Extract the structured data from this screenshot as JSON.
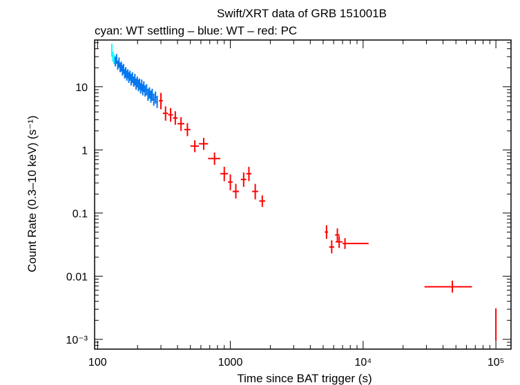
{
  "chart_data": {
    "type": "scatter",
    "title": "Swift/XRT data of GRB 151001B",
    "subtitle": "cyan: WT settling – blue: WT – red: PC",
    "xlabel": "Time since BAT trigger (s)",
    "ylabel": "Count Rate (0.3–10 keV) (s⁻¹)",
    "xscale": "log",
    "yscale": "log",
    "xlim": [
      95,
      130000
    ],
    "ylim": [
      0.0007,
      55
    ],
    "x_ticks": [
      {
        "value": 100,
        "label": "100"
      },
      {
        "value": 1000,
        "label": "1000"
      },
      {
        "value": 10000,
        "label": "10⁴"
      },
      {
        "value": 100000,
        "label": "10⁵"
      }
    ],
    "y_ticks": [
      {
        "value": 10,
        "label": "10"
      },
      {
        "value": 1,
        "label": "1"
      },
      {
        "value": 0.1,
        "label": "0.1"
      },
      {
        "value": 0.01,
        "label": "0.01"
      },
      {
        "value": 0.001,
        "label": "10⁻³"
      }
    ],
    "colors": {
      "wt_settling": "#00ffff",
      "wt": "#0077ee",
      "pc": "#ff0000"
    },
    "series": [
      {
        "name": "WT settling",
        "color": "#00ffff",
        "points": [
          {
            "x": 128,
            "xlo": 127,
            "xhi": 129,
            "y": 38,
            "ylo": 30,
            "yhi": 48
          },
          {
            "x": 130.5,
            "xlo": 129.5,
            "xhi": 131.5,
            "y": 30,
            "ylo": 25,
            "yhi": 36
          },
          {
            "x": 133,
            "xlo": 132,
            "xhi": 134,
            "y": 27,
            "ylo": 23,
            "yhi": 32
          }
        ]
      },
      {
        "name": "WT",
        "color": "#0077ee",
        "points": [
          {
            "x": 136,
            "xlo": 134.5,
            "xhi": 137.5,
            "y": 25,
            "ylo": 21,
            "yhi": 30
          },
          {
            "x": 139,
            "xlo": 137.5,
            "xhi": 140.5,
            "y": 28,
            "ylo": 23,
            "yhi": 33
          },
          {
            "x": 142,
            "xlo": 140.5,
            "xhi": 143.5,
            "y": 22,
            "ylo": 18.5,
            "yhi": 26
          },
          {
            "x": 145,
            "xlo": 143.5,
            "xhi": 146.5,
            "y": 24,
            "ylo": 20,
            "yhi": 29
          },
          {
            "x": 148,
            "xlo": 146.5,
            "xhi": 149.5,
            "y": 20,
            "ylo": 17,
            "yhi": 24
          },
          {
            "x": 151,
            "xlo": 149.5,
            "xhi": 152.5,
            "y": 21,
            "ylo": 17.5,
            "yhi": 25
          },
          {
            "x": 154,
            "xlo": 152.5,
            "xhi": 155.5,
            "y": 18,
            "ylo": 15,
            "yhi": 22
          },
          {
            "x": 157,
            "xlo": 155.5,
            "xhi": 158.5,
            "y": 19,
            "ylo": 16,
            "yhi": 23
          },
          {
            "x": 160,
            "xlo": 158.5,
            "xhi": 161.5,
            "y": 16,
            "ylo": 13.5,
            "yhi": 19
          },
          {
            "x": 163,
            "xlo": 161.5,
            "xhi": 164.5,
            "y": 17,
            "ylo": 14,
            "yhi": 20.5
          },
          {
            "x": 166,
            "xlo": 164.5,
            "xhi": 167.5,
            "y": 15,
            "ylo": 12.5,
            "yhi": 18
          },
          {
            "x": 169,
            "xlo": 167.5,
            "xhi": 170.5,
            "y": 16,
            "ylo": 13.5,
            "yhi": 19
          },
          {
            "x": 172,
            "xlo": 170.5,
            "xhi": 173.5,
            "y": 14,
            "ylo": 11.5,
            "yhi": 17
          },
          {
            "x": 175.5,
            "xlo": 174,
            "xhi": 177,
            "y": 15,
            "ylo": 12.5,
            "yhi": 18
          },
          {
            "x": 179,
            "xlo": 177,
            "xhi": 181,
            "y": 13,
            "ylo": 10.5,
            "yhi": 16
          },
          {
            "x": 183,
            "xlo": 181,
            "xhi": 185,
            "y": 14,
            "ylo": 11.5,
            "yhi": 17
          },
          {
            "x": 187,
            "xlo": 185,
            "xhi": 189,
            "y": 12,
            "ylo": 10,
            "yhi": 14.5
          },
          {
            "x": 191,
            "xlo": 189,
            "xhi": 193,
            "y": 13,
            "ylo": 10.5,
            "yhi": 16
          },
          {
            "x": 195,
            "xlo": 193,
            "xhi": 197,
            "y": 11,
            "ylo": 9,
            "yhi": 13.5
          },
          {
            "x": 199,
            "xlo": 197,
            "xhi": 201,
            "y": 12,
            "ylo": 9.8,
            "yhi": 14.5
          },
          {
            "x": 203,
            "xlo": 201,
            "xhi": 205,
            "y": 10.5,
            "ylo": 8.5,
            "yhi": 13
          },
          {
            "x": 207,
            "xlo": 205,
            "xhi": 209,
            "y": 11,
            "ylo": 9,
            "yhi": 13.5
          },
          {
            "x": 211,
            "xlo": 209,
            "xhi": 213,
            "y": 9.5,
            "ylo": 7.8,
            "yhi": 11.5
          },
          {
            "x": 215,
            "xlo": 213,
            "xhi": 217,
            "y": 10.5,
            "ylo": 8.5,
            "yhi": 13
          },
          {
            "x": 219,
            "xlo": 217,
            "xhi": 221,
            "y": 9,
            "ylo": 7.3,
            "yhi": 11
          },
          {
            "x": 223,
            "xlo": 221,
            "xhi": 225,
            "y": 10,
            "ylo": 8.2,
            "yhi": 12.2
          },
          {
            "x": 228,
            "xlo": 225,
            "xhi": 231,
            "y": 8.5,
            "ylo": 7,
            "yhi": 10.5
          },
          {
            "x": 234,
            "xlo": 231,
            "xhi": 237,
            "y": 9,
            "ylo": 7.3,
            "yhi": 11
          },
          {
            "x": 240,
            "xlo": 237,
            "xhi": 243,
            "y": 7.5,
            "ylo": 6,
            "yhi": 9.3
          },
          {
            "x": 246,
            "xlo": 243,
            "xhi": 249,
            "y": 8,
            "ylo": 6.5,
            "yhi": 9.8
          },
          {
            "x": 252,
            "xlo": 249,
            "xhi": 255,
            "y": 7,
            "ylo": 5.6,
            "yhi": 8.7
          },
          {
            "x": 258,
            "xlo": 255,
            "xhi": 261,
            "y": 7.5,
            "ylo": 6,
            "yhi": 9.3
          },
          {
            "x": 265,
            "xlo": 261,
            "xhi": 269,
            "y": 6.3,
            "ylo": 5,
            "yhi": 7.8
          },
          {
            "x": 273,
            "xlo": 269,
            "xhi": 277,
            "y": 6.8,
            "ylo": 5.4,
            "yhi": 8.4
          },
          {
            "x": 281,
            "xlo": 277,
            "xhi": 285,
            "y": 5.8,
            "ylo": 4.6,
            "yhi": 7.2
          }
        ]
      },
      {
        "name": "PC",
        "color": "#ff0000",
        "points": [
          {
            "x": 300,
            "xlo": 290,
            "xhi": 310,
            "y": 6.0,
            "ylo": 4.4,
            "yhi": 8.0
          },
          {
            "x": 325,
            "xlo": 310,
            "xhi": 340,
            "y": 3.8,
            "ylo": 2.9,
            "yhi": 4.9
          },
          {
            "x": 355,
            "xlo": 340,
            "xhi": 370,
            "y": 3.6,
            "ylo": 2.8,
            "yhi": 4.6
          },
          {
            "x": 385,
            "xlo": 370,
            "xhi": 400,
            "y": 3.2,
            "ylo": 2.5,
            "yhi": 4.1
          },
          {
            "x": 425,
            "xlo": 400,
            "xhi": 450,
            "y": 2.6,
            "ylo": 2.0,
            "yhi": 3.3
          },
          {
            "x": 475,
            "xlo": 450,
            "xhi": 500,
            "y": 2.1,
            "ylo": 1.65,
            "yhi": 2.65
          },
          {
            "x": 540,
            "xlo": 500,
            "xhi": 580,
            "y": 1.15,
            "ylo": 0.92,
            "yhi": 1.42
          },
          {
            "x": 630,
            "xlo": 580,
            "xhi": 680,
            "y": 1.25,
            "ylo": 1.0,
            "yhi": 1.55
          },
          {
            "x": 760,
            "xlo": 680,
            "xhi": 840,
            "y": 0.73,
            "ylo": 0.58,
            "yhi": 0.91
          },
          {
            "x": 900,
            "xlo": 840,
            "xhi": 960,
            "y": 0.42,
            "ylo": 0.32,
            "yhi": 0.54
          },
          {
            "x": 1000,
            "xlo": 960,
            "xhi": 1040,
            "y": 0.31,
            "ylo": 0.23,
            "yhi": 0.41
          },
          {
            "x": 1100,
            "xlo": 1040,
            "xhi": 1160,
            "y": 0.22,
            "ylo": 0.17,
            "yhi": 0.29
          },
          {
            "x": 1260,
            "xlo": 1200,
            "xhi": 1320,
            "y": 0.34,
            "ylo": 0.26,
            "yhi": 0.44
          },
          {
            "x": 1380,
            "xlo": 1320,
            "xhi": 1440,
            "y": 0.42,
            "ylo": 0.32,
            "yhi": 0.54
          },
          {
            "x": 1540,
            "xlo": 1460,
            "xhi": 1620,
            "y": 0.22,
            "ylo": 0.165,
            "yhi": 0.29
          },
          {
            "x": 1740,
            "xlo": 1650,
            "xhi": 1830,
            "y": 0.155,
            "ylo": 0.125,
            "yhi": 0.19
          },
          {
            "x": 5300,
            "xlo": 5150,
            "xhi": 5450,
            "y": 0.05,
            "ylo": 0.039,
            "yhi": 0.064
          },
          {
            "x": 5800,
            "xlo": 5550,
            "xhi": 6050,
            "y": 0.029,
            "ylo": 0.023,
            "yhi": 0.037
          },
          {
            "x": 6400,
            "xlo": 6150,
            "xhi": 6650,
            "y": 0.045,
            "ylo": 0.036,
            "yhi": 0.057
          },
          {
            "x": 6600,
            "xlo": 6200,
            "xhi": 7000,
            "y": 0.035,
            "ylo": 0.028,
            "yhi": 0.043
          },
          {
            "x": 7300,
            "xlo": 7000,
            "xhi": 11000,
            "y": 0.033,
            "ylo": 0.027,
            "yhi": 0.04
          },
          {
            "x": 47000,
            "xlo": 29000,
            "xhi": 66000,
            "y": 0.0068,
            "ylo": 0.0055,
            "yhi": 0.0085
          },
          {
            "x": 100000,
            "xlo": 99000,
            "xhi": 101000,
            "y": 0.0019,
            "ylo": 0.00095,
            "yhi": 0.0031
          }
        ]
      }
    ]
  }
}
